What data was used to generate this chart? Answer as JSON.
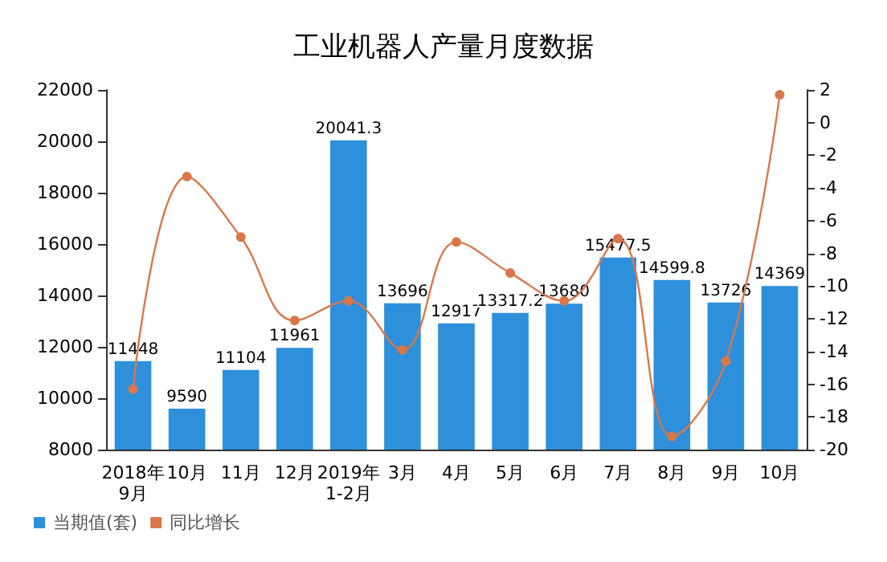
{
  "chart_data": {
    "type": "bar",
    "title": "工业机器人产量月度数据",
    "categories": [
      "2018年\n9月",
      "10月",
      "11月",
      "12月",
      "2019年\n1-2月",
      "3月",
      "4月",
      "5月",
      "6月",
      "7月",
      "8月",
      "9月",
      "10月"
    ],
    "series": [
      {
        "name": "当期值(套)",
        "color": "#2e8fdb",
        "values": [
          11448,
          9590,
          11104,
          11961,
          20041.3,
          13696,
          12917,
          13317.2,
          13680,
          15477.5,
          14599.8,
          13726,
          14369
        ],
        "value_labels": [
          "11448",
          "9590",
          "11104",
          "11961",
          "20041.3",
          "13696",
          "12917",
          "13317.2",
          "13680",
          "15477.5",
          "14599.8",
          "13726",
          "14369"
        ]
      },
      {
        "name": "同比增长",
        "type": "line",
        "axis": "y2",
        "color": "#d9774a",
        "values": [
          -16.3,
          -3.3,
          -7.0,
          -12.1,
          -10.9,
          -13.9,
          -7.3,
          -9.2,
          -10.9,
          -7.1,
          -19.2,
          -14.6,
          1.7
        ]
      }
    ],
    "ylim": [
      8000,
      22000
    ],
    "yticks": [
      8000,
      10000,
      12000,
      14000,
      16000,
      18000,
      20000,
      22000
    ],
    "y2lim": [
      -20,
      2
    ],
    "y2ticks": [
      -20,
      -18,
      -16,
      -14,
      -12,
      -10,
      -8,
      -6,
      -4,
      -2,
      0,
      2
    ],
    "marker": "circle",
    "grid": false,
    "legend": "bottom left"
  }
}
